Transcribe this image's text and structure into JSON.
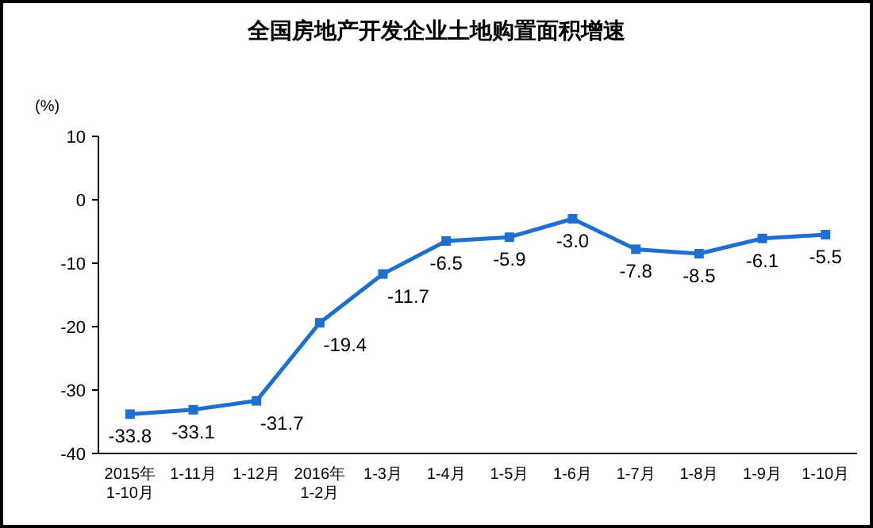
{
  "chart_data": {
    "type": "line",
    "title": "全国房地产开发企业土地购置面积增速",
    "ylabel": "(%)",
    "categories": [
      "2015年\n1-10月",
      "1-11月",
      "1-12月",
      "2016年\n1-2月",
      "1-3月",
      "1-4月",
      "1-5月",
      "1-6月",
      "1-7月",
      "1-8月",
      "1-9月",
      "1-10月"
    ],
    "series": [
      {
        "color": "#1f6fd0",
        "values": [
          -33.8,
          -33.1,
          -31.7,
          -19.4,
          -11.7,
          -6.5,
          -5.9,
          -3.0,
          -7.8,
          -8.5,
          -6.1,
          -5.5
        ],
        "value_labels": [
          "-33.8",
          "-33.1",
          "-31.7",
          "-19.4",
          "-11.7",
          "-6.5",
          "-5.9",
          "-3.0",
          "-7.8",
          "-8.5",
          "-6.1",
          "-5.5"
        ]
      }
    ],
    "ylim": [
      -40,
      10
    ],
    "yticks": [
      -40,
      -30,
      -20,
      -10,
      0,
      10
    ],
    "marker": "square",
    "line_style": "solid"
  }
}
